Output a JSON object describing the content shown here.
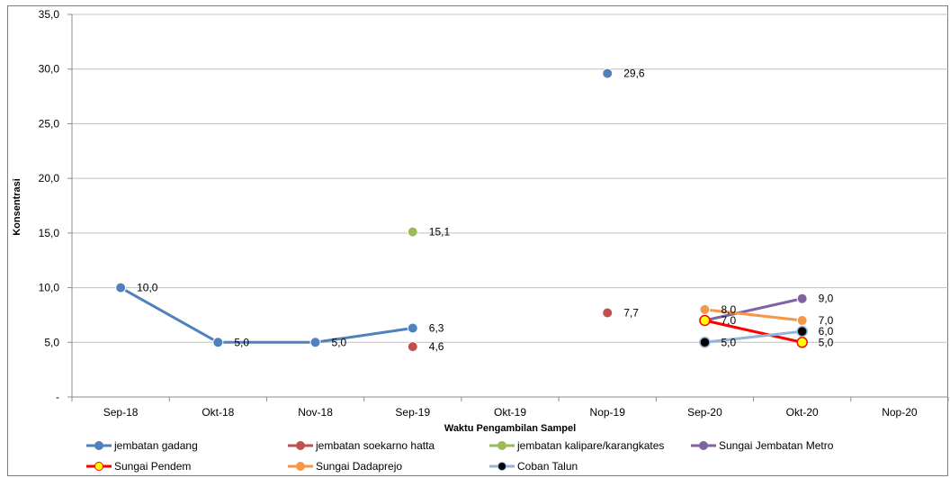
{
  "chart_data": {
    "type": "line",
    "title": "",
    "xlabel": "Waktu Pengambilan Sampel",
    "ylabel": "Konsentrasi",
    "categories": [
      "Sep-18",
      "Okt-18",
      "Nov-18",
      "Sep-19",
      "Okt-19",
      "Nop-19",
      "Sep-20",
      "Okt-20",
      "Nop-20"
    ],
    "ylim": [
      0,
      35
    ],
    "yticks": [
      0,
      5,
      10,
      15,
      20,
      25,
      30,
      35
    ],
    "ytick_labels": [
      "-",
      "5,0",
      "10,0",
      "15,0",
      "20,0",
      "25,0",
      "30,0",
      "35,0"
    ],
    "grid": "horizontal major gridlines",
    "legend_position": "bottom",
    "series": [
      {
        "name": "jembatan gadang",
        "color": "#4f81bd",
        "values": [
          10.0,
          5.0,
          5.0,
          6.3,
          null,
          29.6,
          null,
          null,
          null
        ],
        "labels": [
          "10,0",
          "5,0",
          "5,0",
          "6,3",
          "",
          "29,6",
          "",
          "",
          ""
        ]
      },
      {
        "name": "jembatan soekarno hatta",
        "color": "#c0504d",
        "values": [
          null,
          null,
          null,
          4.6,
          null,
          7.7,
          null,
          null,
          null
        ],
        "labels": [
          "",
          "",
          "",
          "4,6",
          "",
          "7,7",
          "",
          "",
          ""
        ]
      },
      {
        "name": "jembatan kalipare/karangkates",
        "color": "#9bbb59",
        "values": [
          null,
          null,
          null,
          15.1,
          null,
          null,
          7.0,
          null,
          null
        ],
        "labels": [
          "",
          "",
          "",
          "15,1",
          "",
          "",
          "",
          "",
          ""
        ]
      },
      {
        "name": "Sungai Jembatan Metro",
        "color": "#8064a2",
        "values": [
          null,
          null,
          null,
          null,
          null,
          null,
          7.0,
          9.0,
          null
        ],
        "labels": [
          "",
          "",
          "",
          "",
          "",
          "",
          "",
          "9,0",
          ""
        ]
      },
      {
        "name": "Sungai Pendem",
        "color": "#ff0000",
        "marker_color": "#ffff00",
        "values": [
          null,
          null,
          null,
          null,
          null,
          null,
          7.0,
          5.0,
          null
        ],
        "labels": [
          "",
          "",
          "",
          "",
          "",
          "",
          "7,0",
          "5,0",
          ""
        ]
      },
      {
        "name": "Sungai Dadaprejo",
        "color": "#f79646",
        "values": [
          null,
          null,
          null,
          null,
          null,
          null,
          8.0,
          7.0,
          null
        ],
        "labels": [
          "",
          "",
          "",
          "",
          "",
          "",
          "8,0",
          "7,0",
          ""
        ]
      },
      {
        "name": "Coban Talun",
        "color": "#95b3d7",
        "marker_color": "#000000",
        "values": [
          null,
          null,
          null,
          null,
          null,
          null,
          5.0,
          6.0,
          null
        ],
        "labels": [
          "",
          "",
          "",
          "",
          "",
          "",
          "5,0",
          "6,0",
          ""
        ]
      }
    ]
  }
}
